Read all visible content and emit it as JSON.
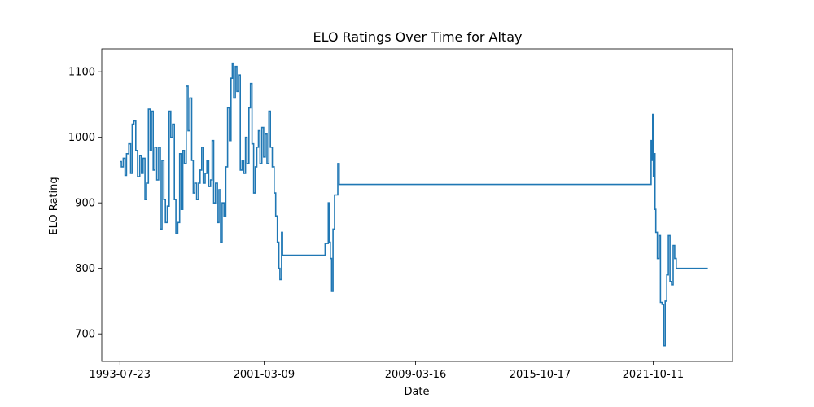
{
  "chart_data": {
    "type": "line",
    "title": "ELO Ratings Over Time for Altay",
    "xlabel": "Date",
    "ylabel": "ELO Rating",
    "x_scale": "date",
    "xlim": [
      "1992-08-06",
      "2025-12-24"
    ],
    "ylim": [
      658,
      1135
    ],
    "grid": false,
    "x_ticks": [
      "1993-07-23",
      "2001-03-09",
      "2009-03-16",
      "2015-10-17",
      "2021-10-11"
    ],
    "y_ticks": [
      700,
      800,
      900,
      1000,
      1100
    ],
    "line_color": "#1f77b4",
    "series": [
      {
        "name": "",
        "points": [
          [
            "1993-07-23",
            963
          ],
          [
            "1993-08-20",
            955
          ],
          [
            "1993-09-25",
            968
          ],
          [
            "1993-10-30",
            942
          ],
          [
            "1993-11-28",
            975
          ],
          [
            "1994-01-10",
            990
          ],
          [
            "1994-02-15",
            945
          ],
          [
            "1994-03-18",
            1020
          ],
          [
            "1994-04-20",
            1025
          ],
          [
            "1994-05-25",
            980
          ],
          [
            "1994-06-30",
            940
          ],
          [
            "1994-08-10",
            972
          ],
          [
            "1994-09-12",
            945
          ],
          [
            "1994-10-15",
            968
          ],
          [
            "1994-11-20",
            905
          ],
          [
            "1994-12-20",
            930
          ],
          [
            "1995-01-25",
            1043
          ],
          [
            "1995-02-28",
            980
          ],
          [
            "1995-03-25",
            1040
          ],
          [
            "1995-04-28",
            950
          ],
          [
            "1995-05-30",
            985
          ],
          [
            "1995-07-05",
            935
          ],
          [
            "1995-08-10",
            985
          ],
          [
            "1995-09-12",
            860
          ],
          [
            "1995-10-15",
            965
          ],
          [
            "1995-11-20",
            905
          ],
          [
            "1995-12-20",
            870
          ],
          [
            "1996-01-25",
            895
          ],
          [
            "1996-03-01",
            1040
          ],
          [
            "1996-04-01",
            1000
          ],
          [
            "1996-05-05",
            1020
          ],
          [
            "1996-06-10",
            905
          ],
          [
            "1996-07-10",
            853
          ],
          [
            "1996-08-15",
            870
          ],
          [
            "1996-09-20",
            975
          ],
          [
            "1996-10-20",
            890
          ],
          [
            "1996-11-20",
            980
          ],
          [
            "1996-12-20",
            960
          ],
          [
            "1997-01-25",
            1078
          ],
          [
            "1997-03-01",
            1010
          ],
          [
            "1997-04-05",
            1060
          ],
          [
            "1997-05-10",
            965
          ],
          [
            "1997-06-10",
            915
          ],
          [
            "1997-07-10",
            930
          ],
          [
            "1997-08-15",
            905
          ],
          [
            "1997-09-20",
            930
          ],
          [
            "1997-10-20",
            950
          ],
          [
            "1997-11-20",
            985
          ],
          [
            "1997-12-20",
            930
          ],
          [
            "1998-01-25",
            945
          ],
          [
            "1998-03-01",
            965
          ],
          [
            "1998-04-05",
            925
          ],
          [
            "1998-05-10",
            935
          ],
          [
            "1998-06-10",
            995
          ],
          [
            "1998-07-10",
            900
          ],
          [
            "1998-08-15",
            930
          ],
          [
            "1998-09-20",
            870
          ],
          [
            "1998-10-20",
            920
          ],
          [
            "1998-11-20",
            840
          ],
          [
            "1998-12-20",
            900
          ],
          [
            "1999-01-25",
            880
          ],
          [
            "1999-03-01",
            955
          ],
          [
            "1999-04-05",
            1045
          ],
          [
            "1999-05-10",
            995
          ],
          [
            "1999-06-10",
            1090
          ],
          [
            "1999-07-05",
            1113
          ],
          [
            "1999-08-01",
            1060
          ],
          [
            "1999-09-01",
            1108
          ],
          [
            "1999-10-01",
            1070
          ],
          [
            "1999-11-01",
            1095
          ],
          [
            "1999-12-05",
            950
          ],
          [
            "2000-01-10",
            965
          ],
          [
            "2000-02-10",
            945
          ],
          [
            "2000-03-15",
            1000
          ],
          [
            "2000-04-15",
            960
          ],
          [
            "2000-05-20",
            1045
          ],
          [
            "2000-06-20",
            1082
          ],
          [
            "2000-07-20",
            990
          ],
          [
            "2000-08-20",
            915
          ],
          [
            "2000-09-20",
            955
          ],
          [
            "2000-10-20",
            985
          ],
          [
            "2000-11-20",
            1010
          ],
          [
            "2000-12-20",
            960
          ],
          [
            "2001-01-25",
            1015
          ],
          [
            "2001-03-01",
            970
          ],
          [
            "2001-04-01",
            1005
          ],
          [
            "2001-05-05",
            960
          ],
          [
            "2001-06-10",
            1040
          ],
          [
            "2001-07-10",
            985
          ],
          [
            "2001-08-15",
            955
          ],
          [
            "2001-09-20",
            915
          ],
          [
            "2001-10-20",
            880
          ],
          [
            "2001-11-20",
            840
          ],
          [
            "2001-12-20",
            800
          ],
          [
            "2002-01-10",
            783
          ],
          [
            "2002-02-10",
            855
          ],
          [
            "2002-03-01",
            820
          ],
          [
            "2004-05-20",
            820
          ],
          [
            "2004-06-01",
            838
          ],
          [
            "2004-07-01",
            838
          ],
          [
            "2004-08-01",
            900
          ],
          [
            "2004-08-20",
            840
          ],
          [
            "2004-09-10",
            815
          ],
          [
            "2004-10-05",
            765
          ],
          [
            "2004-11-01",
            860
          ],
          [
            "2004-12-01",
            912
          ],
          [
            "2005-01-01",
            912
          ],
          [
            "2005-02-01",
            960
          ],
          [
            "2005-03-01",
            928
          ],
          [
            "2021-08-20",
            928
          ],
          [
            "2021-09-01",
            995
          ],
          [
            "2021-09-15",
            965
          ],
          [
            "2021-10-01",
            1035
          ],
          [
            "2021-10-15",
            940
          ],
          [
            "2021-11-01",
            975
          ],
          [
            "2021-11-15",
            890
          ],
          [
            "2021-12-01",
            855
          ],
          [
            "2022-01-01",
            815
          ],
          [
            "2022-02-01",
            850
          ],
          [
            "2022-03-01",
            748
          ],
          [
            "2022-04-01",
            745
          ],
          [
            "2022-05-01",
            682
          ],
          [
            "2022-06-01",
            750
          ],
          [
            "2022-07-01",
            790
          ],
          [
            "2022-08-01",
            850
          ],
          [
            "2022-09-01",
            780
          ],
          [
            "2022-10-01",
            775
          ],
          [
            "2022-11-01",
            835
          ],
          [
            "2022-12-01",
            815
          ],
          [
            "2023-01-01",
            800
          ],
          [
            "2024-09-01",
            800
          ]
        ]
      }
    ]
  }
}
